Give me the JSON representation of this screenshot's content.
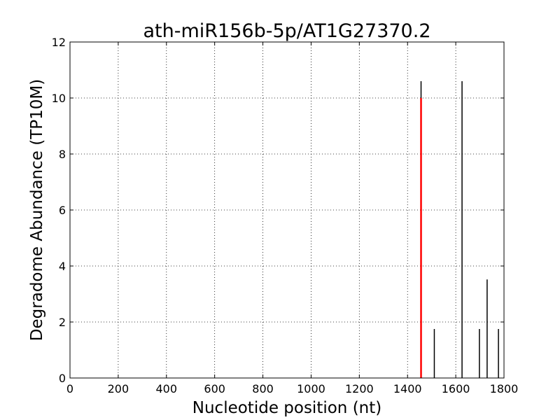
{
  "chart_data": {
    "type": "bar",
    "title": "ath-miR156b-5p/AT1G27370.2",
    "xlabel": "Nucleotide position (nt)",
    "ylabel": "Degradome Abundance (TP10M)",
    "xlim": [
      0,
      1800
    ],
    "ylim": [
      0,
      12
    ],
    "xticks": [
      0,
      200,
      400,
      600,
      800,
      1000,
      1200,
      1400,
      1600,
      1800
    ],
    "yticks": [
      0,
      2,
      4,
      6,
      8,
      10,
      12
    ],
    "grid": true,
    "series": [
      {
        "color": "#000000",
        "points": [
          {
            "x": 1456,
            "y": 10.6
          },
          {
            "x": 1511,
            "y": 1.75
          },
          {
            "x": 1626,
            "y": 10.6
          },
          {
            "x": 1698,
            "y": 1.75
          },
          {
            "x": 1730,
            "y": 3.52
          },
          {
            "x": 1777,
            "y": 1.75
          }
        ]
      },
      {
        "color": "#ff0000",
        "points": [
          {
            "x": 1456,
            "y": 10.0
          }
        ]
      }
    ]
  }
}
